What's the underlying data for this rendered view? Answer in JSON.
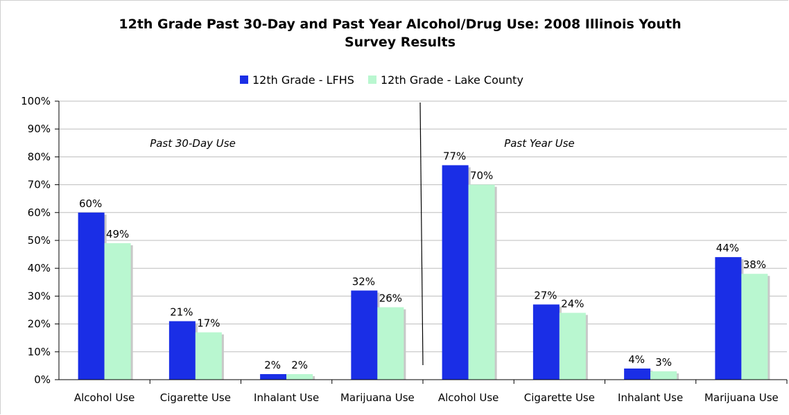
{
  "chart_data": {
    "type": "bar",
    "title_line1": "12th Grade Past 30-Day and Past Year Alcohol/Drug Use:  2008 Illinois Youth",
    "title_line2": "Survey Results",
    "categories": [
      "Alcohol Use",
      "Cigarette Use",
      "Inhalant Use",
      "Marijuana Use",
      "Alcohol Use",
      "Cigarette Use",
      "Inhalant Use",
      "Marijuana Use"
    ],
    "series": [
      {
        "name": "12th Grade - LFHS",
        "color": "#1a2ee6",
        "values": [
          60,
          21,
          2,
          32,
          77,
          27,
          4,
          44
        ]
      },
      {
        "name": "12th Grade - Lake County",
        "color": "#b9f7d0",
        "values": [
          49,
          17,
          2,
          26,
          70,
          24,
          3,
          38
        ]
      }
    ],
    "data_labels": [
      [
        "60%",
        "21%",
        "2%",
        "32%",
        "77%",
        "27%",
        "4%",
        "44%"
      ],
      [
        "49%",
        "17%",
        "2%",
        "26%",
        "70%",
        "24%",
        "3%",
        "38%"
      ]
    ],
    "yticks": [
      "0%",
      "10%",
      "20%",
      "30%",
      "40%",
      "50%",
      "60%",
      "70%",
      "80%",
      "90%",
      "100%"
    ],
    "ylim": [
      0,
      100
    ],
    "grid": true,
    "legend_position": "top-center",
    "annotations": {
      "left": "Past 30-Day Use",
      "right": "Past Year Use"
    },
    "shadow_color": "#c8c8c8"
  }
}
